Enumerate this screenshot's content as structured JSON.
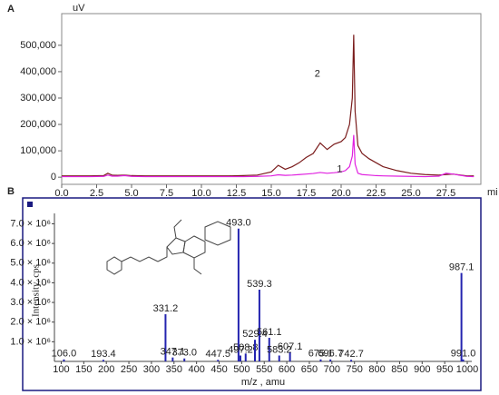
{
  "chart_data": [
    {
      "type": "line",
      "panel": "A",
      "y_unit": "uV",
      "x_unit": "mi",
      "x": [
        0,
        1,
        2,
        3,
        3.3,
        3.6,
        4,
        4.5,
        5,
        6,
        7,
        8,
        9,
        10,
        11,
        12,
        13,
        14,
        15,
        15.5,
        16,
        16.5,
        17,
        17.5,
        18,
        18.5,
        19,
        19.5,
        20,
        20.3,
        20.6,
        20.8,
        20.9,
        21.0,
        21.2,
        21.5,
        22,
        22.5,
        23,
        24,
        25,
        26,
        27,
        27.5,
        28,
        29,
        29.5
      ],
      "series": [
        {
          "name": "2",
          "color": "#7a1c1c",
          "values": [
            5000,
            5000,
            5000,
            6000,
            15000,
            8000,
            7000,
            8000,
            6000,
            5000,
            5000,
            5000,
            5000,
            5000,
            5000,
            5000,
            6000,
            8000,
            20000,
            45000,
            30000,
            40000,
            55000,
            75000,
            90000,
            130000,
            105000,
            125000,
            135000,
            150000,
            200000,
            300000,
            540000,
            250000,
            120000,
            90000,
            70000,
            55000,
            40000,
            25000,
            15000,
            10000,
            8000,
            10000,
            12000,
            5000,
            5000
          ]
        },
        {
          "name": "1",
          "color": "#e020e0",
          "values": [
            2000,
            2000,
            2000,
            3000,
            8000,
            4000,
            4000,
            6000,
            3000,
            2000,
            2000,
            2000,
            2000,
            2000,
            2000,
            2000,
            2000,
            3000,
            5000,
            9000,
            7000,
            8000,
            10000,
            12000,
            14000,
            18000,
            15000,
            17000,
            20000,
            25000,
            40000,
            80000,
            160000,
            50000,
            15000,
            10000,
            8000,
            6000,
            5000,
            4000,
            3000,
            2000,
            4000,
            15000,
            12000,
            3000,
            2000
          ]
        }
      ],
      "xlim": [
        0,
        30
      ],
      "ylim": [
        -27000,
        620000
      ],
      "xticks": [
        {
          "value": 0,
          "label": "0.0"
        },
        {
          "value": 2.5,
          "label": "2.5"
        },
        {
          "value": 5,
          "label": "5.0"
        },
        {
          "value": 7.5,
          "label": "7.5"
        },
        {
          "value": 10,
          "label": "10.0"
        },
        {
          "value": 12.5,
          "label": "12.5"
        },
        {
          "value": 15,
          "label": "15.0"
        },
        {
          "value": 17.5,
          "label": "17.5"
        },
        {
          "value": 20,
          "label": "20.0"
        },
        {
          "value": 22.5,
          "label": "22.5"
        },
        {
          "value": 25,
          "label": "25.0"
        },
        {
          "value": 27.5,
          "label": "27.5"
        }
      ],
      "yticks": [
        0,
        {
          "value": 100000,
          "label": "100,000"
        },
        {
          "value": 200000,
          "label": "200,000"
        },
        {
          "value": 300000,
          "label": "300,000"
        },
        {
          "value": 400000,
          "label": "400,000"
        },
        {
          "value": 500000,
          "label": "500,000"
        }
      ]
    },
    {
      "type": "spectrum",
      "panel": "B",
      "color": "#2424b0",
      "ylabel": "Intensity, cps",
      "xlabel": "m/z , amu",
      "x": [
        106.0,
        193.4,
        331.2,
        347.1,
        373.0,
        447.5,
        493.0,
        497.2,
        508.8,
        529.4,
        539.3,
        561.1,
        583.2,
        607.1,
        675.1,
        696.7,
        742.7,
        987.1,
        991.0
      ],
      "x_labels": [
        "106.0",
        "193.4",
        "331.2",
        "347.1",
        "373.0",
        "447.5",
        "493.0",
        "497.2",
        "508.8",
        "529.4",
        "539.3",
        "561.1",
        "583.2",
        "607.1",
        "675.1",
        "696.7",
        "742.7",
        "987.1",
        "991.0"
      ],
      "values": [
        100000,
        80000,
        2400000,
        200000,
        150000,
        80000,
        6760000,
        300000,
        400000,
        1100000,
        3650000,
        1200000,
        300000,
        450000,
        100000,
        100000,
        80000,
        4500000,
        100000
      ],
      "xlim": [
        85,
        1010
      ],
      "ylim": [
        0,
        7300000
      ],
      "xticks": [
        100,
        150,
        200,
        250,
        300,
        350,
        400,
        450,
        500,
        550,
        600,
        650,
        700,
        750,
        800,
        850,
        900,
        950,
        1000
      ],
      "yticks": [
        {
          "value": 1000000,
          "label": "1.0 × 10⁶"
        },
        {
          "value": 2000000,
          "label": "2.0 × 10⁶"
        },
        {
          "value": 3000000,
          "label": "3.0 × 10⁶"
        },
        {
          "value": 4000000,
          "label": "4.0 × 10⁶"
        },
        {
          "value": 5000000,
          "label": "5.0 × 10⁶"
        },
        {
          "value": 6000000,
          "label": "6.0 × 10⁶"
        },
        {
          "value": 7000000,
          "label": "7.0 × 10⁶"
        }
      ]
    }
  ]
}
